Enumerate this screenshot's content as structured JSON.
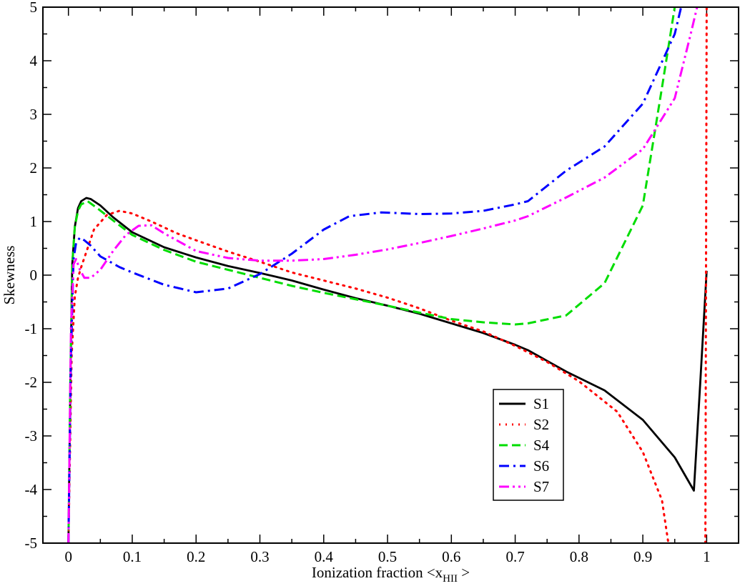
{
  "chart_data": {
    "type": "line",
    "title": "",
    "xlabel": "Ionization fraction <x",
    "xlabel_sub": "HII",
    "xlabel_suffix": " >",
    "ylabel": "Skewness",
    "xlim": [
      -0.04,
      1.05
    ],
    "ylim": [
      -5,
      5
    ],
    "x_ticks": [
      0,
      0.1,
      0.2,
      0.3,
      0.4,
      0.5,
      0.6,
      0.7,
      0.8,
      0.9,
      1
    ],
    "x_tick_labels": [
      "0",
      "0.1",
      "0.2",
      "0.3",
      "0.4",
      "0.5",
      "0.6",
      "0.7",
      "0.8",
      "0.9",
      "1"
    ],
    "y_ticks": [
      -5,
      -4,
      -3,
      -2,
      -1,
      0,
      1,
      2,
      3,
      4,
      5
    ],
    "y_tick_labels": [
      "-5",
      "-4",
      "-3",
      "-2",
      "-1",
      "0",
      "1",
      "2",
      "3",
      "4",
      "5"
    ],
    "grid": false,
    "legend_position": "bottom-right",
    "series": [
      {
        "name": "S1",
        "color": "#000000",
        "dash": "solid",
        "points": [
          [
            0.0,
            -5.0
          ],
          [
            0.003,
            -2.0
          ],
          [
            0.006,
            0.2
          ],
          [
            0.01,
            0.9
          ],
          [
            0.015,
            1.25
          ],
          [
            0.02,
            1.38
          ],
          [
            0.028,
            1.44
          ],
          [
            0.035,
            1.42
          ],
          [
            0.05,
            1.3
          ],
          [
            0.07,
            1.08
          ],
          [
            0.1,
            0.8
          ],
          [
            0.15,
            0.52
          ],
          [
            0.2,
            0.33
          ],
          [
            0.25,
            0.17
          ],
          [
            0.3,
            0.04
          ],
          [
            0.35,
            -0.1
          ],
          [
            0.4,
            -0.27
          ],
          [
            0.45,
            -0.43
          ],
          [
            0.5,
            -0.57
          ],
          [
            0.55,
            -0.72
          ],
          [
            0.6,
            -0.9
          ],
          [
            0.65,
            -1.08
          ],
          [
            0.7,
            -1.3
          ],
          [
            0.72,
            -1.4
          ],
          [
            0.78,
            -1.8
          ],
          [
            0.84,
            -2.15
          ],
          [
            0.9,
            -2.7
          ],
          [
            0.95,
            -3.4
          ],
          [
            0.98,
            -4.02
          ],
          [
            0.99,
            -2.0
          ],
          [
            1.0,
            0.08
          ]
        ]
      },
      {
        "name": "S2",
        "color": "#ff0000",
        "dash": "dotted",
        "points": [
          [
            0.0,
            -5.0
          ],
          [
            0.005,
            -1.5
          ],
          [
            0.01,
            -0.4
          ],
          [
            0.015,
            -0.05
          ],
          [
            0.02,
            0.15
          ],
          [
            0.03,
            0.5
          ],
          [
            0.04,
            0.85
          ],
          [
            0.06,
            1.12
          ],
          [
            0.08,
            1.2
          ],
          [
            0.1,
            1.15
          ],
          [
            0.13,
            1.0
          ],
          [
            0.17,
            0.78
          ],
          [
            0.2,
            0.65
          ],
          [
            0.25,
            0.44
          ],
          [
            0.3,
            0.25
          ],
          [
            0.35,
            0.05
          ],
          [
            0.4,
            -0.1
          ],
          [
            0.45,
            -0.25
          ],
          [
            0.5,
            -0.42
          ],
          [
            0.55,
            -0.62
          ],
          [
            0.6,
            -0.85
          ],
          [
            0.65,
            -1.05
          ],
          [
            0.7,
            -1.32
          ],
          [
            0.75,
            -1.62
          ],
          [
            0.8,
            -1.98
          ],
          [
            0.86,
            -2.55
          ],
          [
            0.9,
            -3.3
          ],
          [
            0.93,
            -4.2
          ],
          [
            0.94,
            -5.0
          ]
        ]
      },
      {
        "name": "S2",
        "color": "#ff0000",
        "dash": "dotted",
        "continuation": true,
        "points": [
          [
            0.998,
            -5.0
          ],
          [
            0.999,
            0.0
          ],
          [
            1.0,
            5.0
          ]
        ]
      },
      {
        "name": "S4",
        "color": "#00dd00",
        "dash": "dashed",
        "points": [
          [
            0.0,
            -5.0
          ],
          [
            0.003,
            -2.0
          ],
          [
            0.006,
            0.2
          ],
          [
            0.01,
            0.9
          ],
          [
            0.015,
            1.2
          ],
          [
            0.02,
            1.32
          ],
          [
            0.03,
            1.38
          ],
          [
            0.045,
            1.25
          ],
          [
            0.07,
            1.02
          ],
          [
            0.1,
            0.75
          ],
          [
            0.15,
            0.47
          ],
          [
            0.2,
            0.25
          ],
          [
            0.25,
            0.1
          ],
          [
            0.3,
            -0.05
          ],
          [
            0.35,
            -0.2
          ],
          [
            0.4,
            -0.33
          ],
          [
            0.45,
            -0.45
          ],
          [
            0.5,
            -0.57
          ],
          [
            0.55,
            -0.7
          ],
          [
            0.6,
            -0.82
          ],
          [
            0.65,
            -0.88
          ],
          [
            0.7,
            -0.92
          ],
          [
            0.72,
            -0.9
          ],
          [
            0.78,
            -0.75
          ],
          [
            0.84,
            -0.15
          ],
          [
            0.9,
            1.3
          ],
          [
            0.93,
            3.5
          ],
          [
            0.95,
            5.0
          ]
        ]
      },
      {
        "name": "S6",
        "color": "#0000ff",
        "dash": "dashdot",
        "points": [
          [
            0.0,
            -5.0
          ],
          [
            0.004,
            -1.5
          ],
          [
            0.008,
            0.3
          ],
          [
            0.012,
            0.6
          ],
          [
            0.018,
            0.7
          ],
          [
            0.025,
            0.65
          ],
          [
            0.035,
            0.55
          ],
          [
            0.05,
            0.35
          ],
          [
            0.08,
            0.15
          ],
          [
            0.1,
            0.05
          ],
          [
            0.15,
            -0.18
          ],
          [
            0.2,
            -0.32
          ],
          [
            0.25,
            -0.25
          ],
          [
            0.3,
            0.02
          ],
          [
            0.35,
            0.4
          ],
          [
            0.4,
            0.85
          ],
          [
            0.44,
            1.1
          ],
          [
            0.49,
            1.17
          ],
          [
            0.55,
            1.14
          ],
          [
            0.6,
            1.15
          ],
          [
            0.65,
            1.2
          ],
          [
            0.7,
            1.32
          ],
          [
            0.72,
            1.38
          ],
          [
            0.78,
            1.95
          ],
          [
            0.84,
            2.4
          ],
          [
            0.9,
            3.2
          ],
          [
            0.95,
            4.5
          ],
          [
            0.96,
            5.0
          ]
        ]
      },
      {
        "name": "S7",
        "color": "#ff00ff",
        "dash": "dashdotdot",
        "points": [
          [
            0.0,
            -5.0
          ],
          [
            0.004,
            -1.0
          ],
          [
            0.008,
            0.2
          ],
          [
            0.012,
            0.3
          ],
          [
            0.018,
            0.1
          ],
          [
            0.025,
            -0.05
          ],
          [
            0.035,
            -0.05
          ],
          [
            0.05,
            0.1
          ],
          [
            0.07,
            0.45
          ],
          [
            0.09,
            0.75
          ],
          [
            0.11,
            0.92
          ],
          [
            0.13,
            0.93
          ],
          [
            0.15,
            0.78
          ],
          [
            0.2,
            0.45
          ],
          [
            0.25,
            0.32
          ],
          [
            0.3,
            0.27
          ],
          [
            0.35,
            0.27
          ],
          [
            0.4,
            0.3
          ],
          [
            0.45,
            0.38
          ],
          [
            0.5,
            0.48
          ],
          [
            0.55,
            0.6
          ],
          [
            0.6,
            0.73
          ],
          [
            0.65,
            0.87
          ],
          [
            0.7,
            1.02
          ],
          [
            0.72,
            1.1
          ],
          [
            0.78,
            1.45
          ],
          [
            0.84,
            1.82
          ],
          [
            0.9,
            2.35
          ],
          [
            0.95,
            3.3
          ],
          [
            0.975,
            4.5
          ],
          [
            0.985,
            5.0
          ]
        ]
      }
    ]
  }
}
